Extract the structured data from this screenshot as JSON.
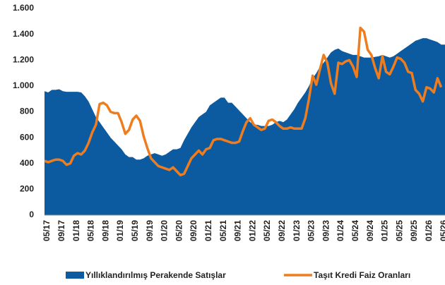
{
  "chart_data": {
    "type": "area",
    "categories": [
      "05/17",
      null,
      null,
      null,
      "09/17",
      null,
      null,
      null,
      "01/18",
      null,
      null,
      null,
      "05/18",
      null,
      null,
      null,
      "09/18",
      null,
      null,
      null,
      "01/19",
      null,
      null,
      null,
      "05/19",
      null,
      null,
      null,
      "09/19",
      null,
      null,
      null,
      "01/20",
      null,
      null,
      null,
      "05/20",
      null,
      null,
      null,
      "09/20",
      null,
      null,
      null,
      "01/21",
      null,
      null,
      null,
      "05/21",
      null,
      null,
      null,
      "09/21",
      null,
      null,
      null,
      "01/22",
      null,
      null,
      null,
      "05/22",
      null,
      null,
      null,
      "09/22",
      null,
      null,
      null,
      "01/23",
      null,
      null,
      null,
      "05/23",
      null,
      null,
      null,
      "09/23",
      null,
      null,
      null,
      "01/24",
      null,
      null,
      null,
      "05/24",
      null,
      null,
      null,
      "09/24",
      null,
      null,
      null,
      "01/25",
      null,
      null,
      null,
      "05/25",
      null,
      null,
      null,
      "09/25",
      null,
      null,
      null,
      "01/26",
      null,
      null,
      null,
      "05/26"
    ],
    "series": [
      {
        "name": "Yıllıklandırılmış Perakende Satışlar",
        "type": "area",
        "color": "#0c5aa0",
        "values": [
          960,
          950,
          970,
          970,
          975,
          960,
          955,
          955,
          955,
          955,
          950,
          920,
          880,
          820,
          760,
          720,
          680,
          640,
          600,
          570,
          540,
          510,
          470,
          450,
          450,
          430,
          430,
          440,
          460,
          470,
          480,
          470,
          460,
          470,
          490,
          510,
          510,
          520,
          580,
          630,
          680,
          720,
          760,
          780,
          800,
          850,
          870,
          890,
          910,
          910,
          870,
          870,
          840,
          810,
          780,
          750,
          720,
          700,
          700,
          690,
          690,
          690,
          700,
          720,
          730,
          720,
          740,
          780,
          820,
          870,
          910,
          950,
          1000,
          1060,
          1100,
          1150,
          1180,
          1220,
          1260,
          1280,
          1290,
          1270,
          1260,
          1250,
          1240,
          1240,
          1230,
          1220,
          1220,
          1220,
          1225,
          1230,
          1240,
          1230,
          1220,
          1230,
          1250,
          1270,
          1290,
          1310,
          1330,
          1350,
          1360,
          1370,
          1370,
          1360,
          1350,
          1340,
          1320
        ]
      },
      {
        "name": "Taşıt Kredi Faiz Oranları",
        "type": "line",
        "color": "#ed7d1f",
        "values": [
          420,
          410,
          420,
          430,
          430,
          420,
          390,
          400,
          460,
          480,
          470,
          500,
          560,
          640,
          700,
          860,
          870,
          850,
          800,
          790,
          790,
          720,
          630,
          660,
          740,
          770,
          730,
          610,
          520,
          440,
          410,
          380,
          370,
          360,
          350,
          370,
          340,
          310,
          320,
          380,
          440,
          470,
          500,
          470,
          510,
          520,
          580,
          590,
          590,
          580,
          570,
          560,
          560,
          570,
          650,
          720,
          750,
          700,
          680,
          660,
          670,
          730,
          740,
          720,
          690,
          670,
          670,
          680,
          670,
          670,
          670,
          750,
          900,
          1080,
          1010,
          1130,
          1240,
          1180,
          1020,
          940,
          1180,
          1170,
          1190,
          1200,
          1150,
          1070,
          1450,
          1420,
          1280,
          1240,
          1140,
          1060,
          1230,
          1110,
          1090,
          1150,
          1220,
          1210,
          1180,
          1110,
          1100,
          970,
          940,
          880,
          990,
          980,
          950,
          1060,
          990
        ]
      }
    ],
    "ylim": [
      0,
      1600
    ],
    "yticks": [
      0,
      200,
      400,
      600,
      800,
      {
        "value": 1000,
        "label": "1.000"
      },
      {
        "value": 1200,
        "label": "1.200"
      },
      {
        "value": 1400,
        "label": "1.400"
      },
      {
        "value": 1600,
        "label": "1.600"
      }
    ]
  }
}
